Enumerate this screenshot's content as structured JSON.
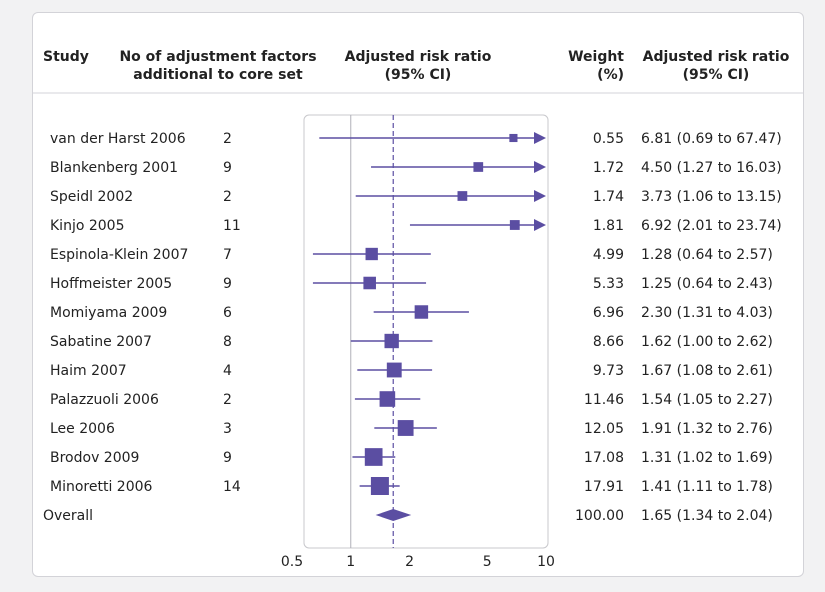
{
  "chart_data": {
    "type": "forest",
    "columns": {
      "study": "Study",
      "adjustment": [
        "No of adjustment factors",
        "additional to core set"
      ],
      "rr": [
        "Adjusted risk ratio",
        "(95% CI)"
      ],
      "weight": [
        "Weight",
        "(%)"
      ],
      "rr_text": [
        "Adjusted risk ratio",
        "(95% CI)"
      ]
    },
    "x_scale": "log",
    "xlim": [
      0.5,
      10
    ],
    "x_ticks": [
      "0.5",
      "1",
      "2",
      "5",
      "10"
    ],
    "x_tick_values": [
      0.5,
      1,
      2,
      5,
      10
    ],
    "null_line": 1,
    "pooled_line": 1.65,
    "color": "#5b4ea2",
    "rows": [
      {
        "study": "van der Harst 2006",
        "adjustment": "2",
        "rr": 6.81,
        "lo": 0.69,
        "hi": 67.47,
        "weight": "0.55",
        "ci_text": "6.81 (0.69 to 67.47)"
      },
      {
        "study": "Blankenberg 2001",
        "adjustment": "9",
        "rr": 4.5,
        "lo": 1.27,
        "hi": 16.03,
        "weight": "1.72",
        "ci_text": "4.50 (1.27 to 16.03)"
      },
      {
        "study": "Speidl 2002",
        "adjustment": "2",
        "rr": 3.73,
        "lo": 1.06,
        "hi": 13.15,
        "weight": "1.74",
        "ci_text": "3.73 (1.06 to 13.15)"
      },
      {
        "study": "Kinjo 2005",
        "adjustment": "11",
        "rr": 6.92,
        "lo": 2.01,
        "hi": 23.74,
        "weight": "1.81",
        "ci_text": "6.92 (2.01 to 23.74)"
      },
      {
        "study": "Espinola-Klein 2007",
        "adjustment": "7",
        "rr": 1.28,
        "lo": 0.64,
        "hi": 2.57,
        "weight": "4.99",
        "ci_text": "1.28 (0.64 to 2.57)"
      },
      {
        "study": "Hoffmeister 2005",
        "adjustment": "9",
        "rr": 1.25,
        "lo": 0.64,
        "hi": 2.43,
        "weight": "5.33",
        "ci_text": "1.25 (0.64 to 2.43)"
      },
      {
        "study": "Momiyama 2009",
        "adjustment": "6",
        "rr": 2.3,
        "lo": 1.31,
        "hi": 4.03,
        "weight": "6.96",
        "ci_text": "2.30 (1.31 to 4.03)"
      },
      {
        "study": "Sabatine 2007",
        "adjustment": "8",
        "rr": 1.62,
        "lo": 1.0,
        "hi": 2.62,
        "weight": "8.66",
        "ci_text": "1.62 (1.00 to 2.62)"
      },
      {
        "study": "Haim 2007",
        "adjustment": "4",
        "rr": 1.67,
        "lo": 1.08,
        "hi": 2.61,
        "weight": "9.73",
        "ci_text": "1.67 (1.08 to 2.61)"
      },
      {
        "study": "Palazzuoli 2006",
        "adjustment": "2",
        "rr": 1.54,
        "lo": 1.05,
        "hi": 2.27,
        "weight": "11.46",
        "ci_text": "1.54 (1.05 to 2.27)"
      },
      {
        "study": "Lee 2006",
        "adjustment": "3",
        "rr": 1.91,
        "lo": 1.32,
        "hi": 2.76,
        "weight": "12.05",
        "ci_text": "1.91 (1.32 to 2.76)"
      },
      {
        "study": "Brodov 2009",
        "adjustment": "9",
        "rr": 1.31,
        "lo": 1.02,
        "hi": 1.69,
        "weight": "17.08",
        "ci_text": "1.31 (1.02 to 1.69)"
      },
      {
        "study": "Minoretti 2006",
        "adjustment": "14",
        "rr": 1.41,
        "lo": 1.11,
        "hi": 1.78,
        "weight": "17.91",
        "ci_text": "1.41 (1.11 to 1.78)"
      }
    ],
    "overall": {
      "label": "Overall",
      "rr": 1.65,
      "lo": 1.34,
      "hi": 2.04,
      "weight": "100.00",
      "ci_text": "1.65 (1.34 to 2.04)"
    }
  }
}
